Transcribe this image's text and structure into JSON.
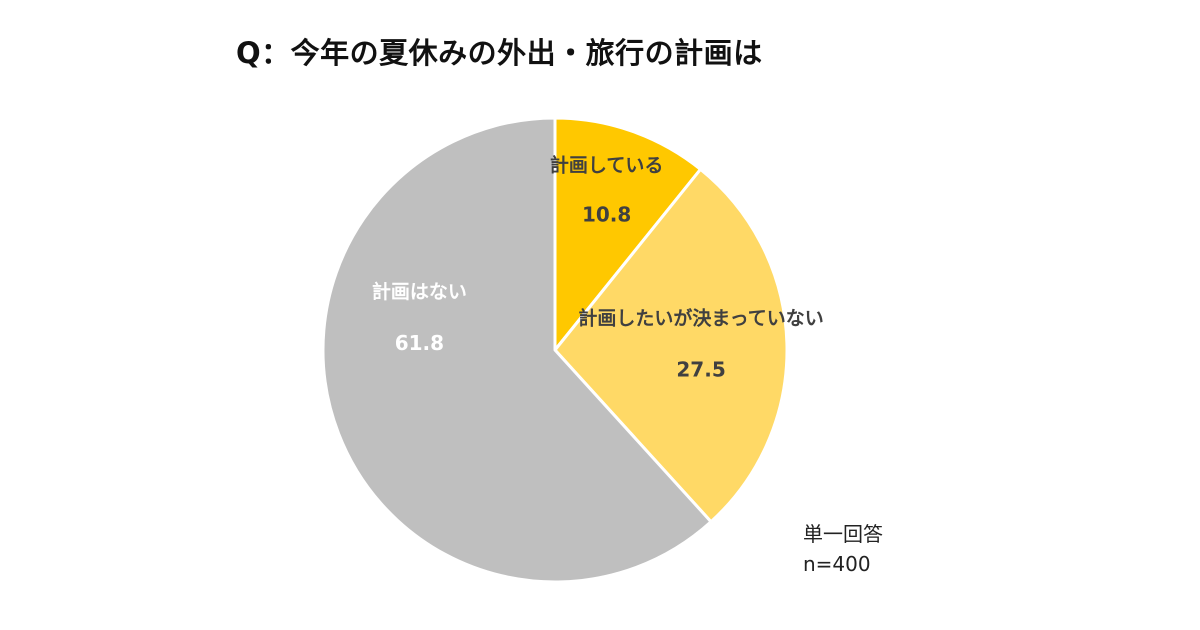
{
  "chart_data": {
    "type": "pie",
    "title": "Q：今年の夏休みの外出・旅行の計画は",
    "slices": [
      {
        "label": "計画している",
        "value": 10.8,
        "color": "#FFC800",
        "text_color": "#404040"
      },
      {
        "label": "計画したいが決まっていない",
        "value": 27.5,
        "color": "#FFD966",
        "text_color": "#404040"
      },
      {
        "label": "計画はない",
        "value": 61.8,
        "color": "#BFBFBF",
        "text_color": "#FFFFFF"
      }
    ],
    "start": "12 o'clock",
    "direction": "clockwise",
    "notes": [
      "単一回答",
      "n=400"
    ]
  }
}
